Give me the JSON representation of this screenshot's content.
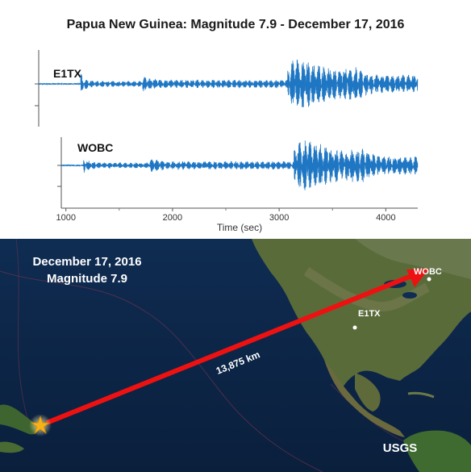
{
  "title": "Papua New Guinea: Magnitude 7.9 - December 17, 2016",
  "colors": {
    "trace": "#1f77c4",
    "path": "#ee1111",
    "ocean": "#0d2647",
    "star": "#f6b21a"
  },
  "chart_data": {
    "type": "line",
    "xlabel": "Time (sec)",
    "xlim": [
      745,
      4300
    ],
    "xticks": [
      1000,
      2000,
      3000,
      4000
    ],
    "series": [
      {
        "name": "E1TX",
        "p_arrival": 1140,
        "s_arrival": 1720,
        "surface_onset": 3080,
        "surface_peak": 3210
      },
      {
        "name": "WOBC",
        "p_arrival": 1165,
        "s_arrival": 1780,
        "surface_onset": 3140,
        "surface_peak": 3275
      }
    ]
  },
  "map": {
    "date": "December 17, 2016",
    "magnitude": "Magnitude 7.9",
    "distance_label": "13,875 km",
    "stations": [
      "WOBC",
      "E1TX"
    ],
    "credit": "USGS",
    "epicenter_icon": "star-icon"
  }
}
